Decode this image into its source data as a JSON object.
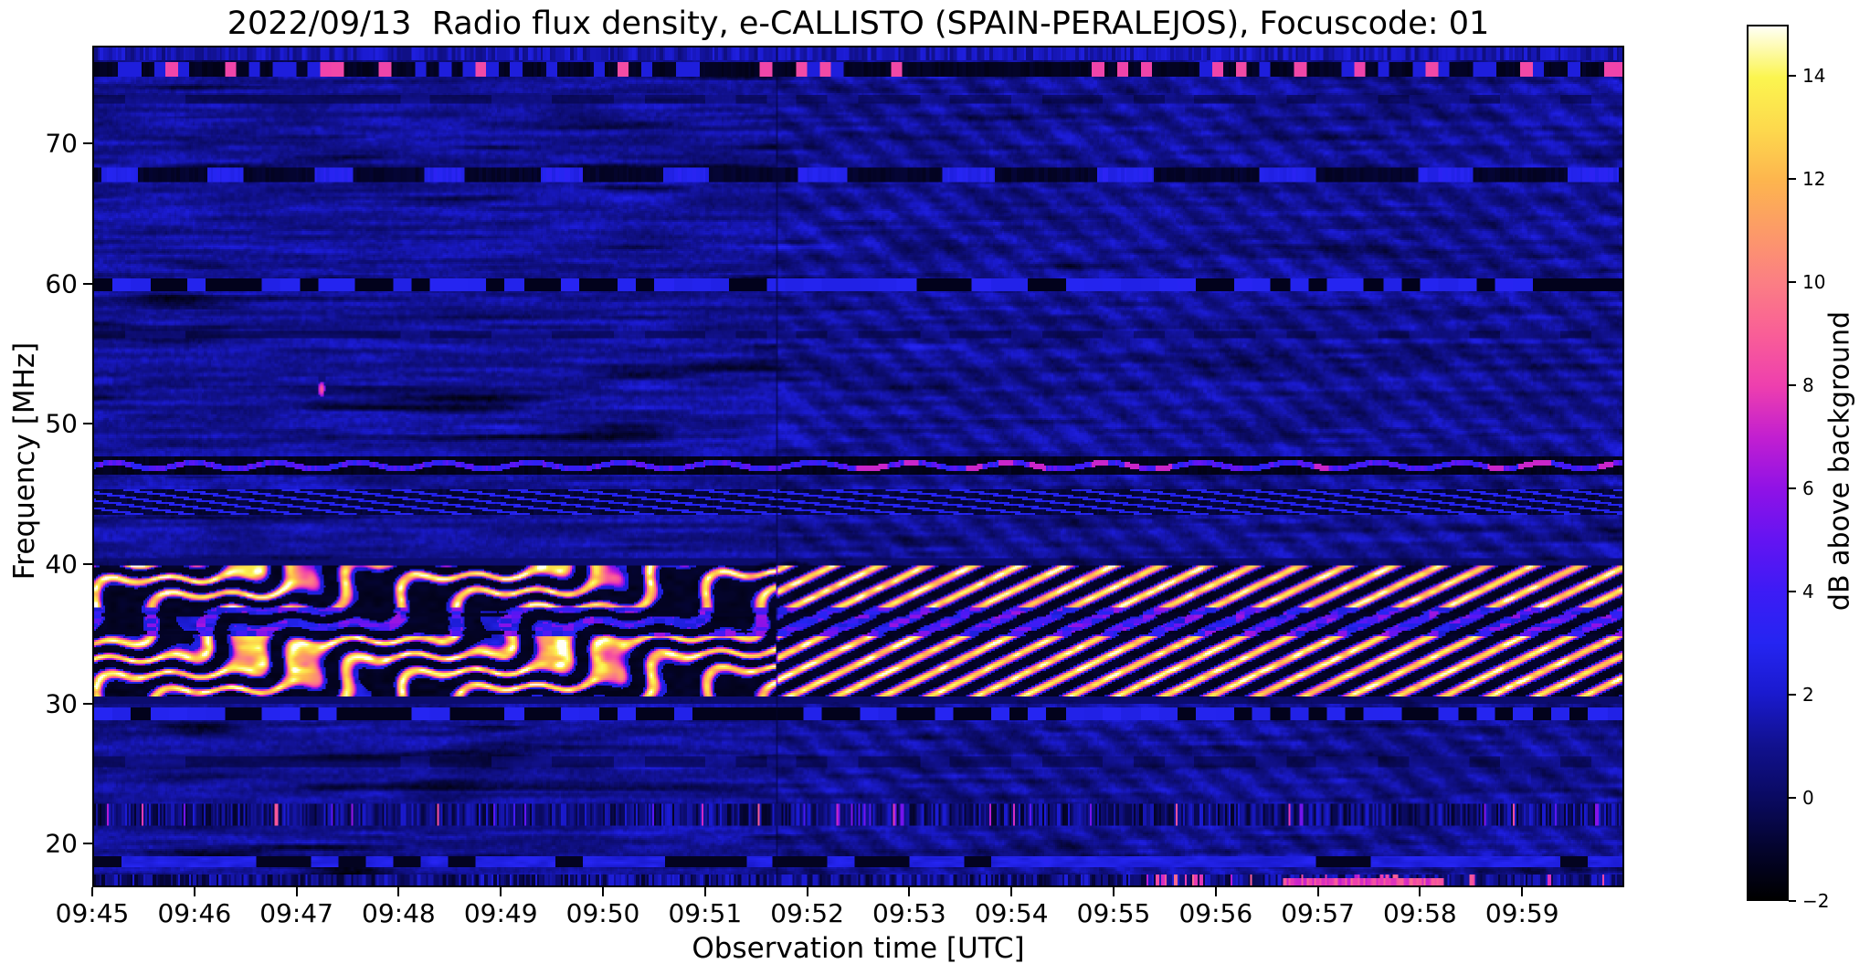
{
  "chart_data": {
    "type": "heatmap",
    "title": "2022/09/13  Radio flux density, e-CALLISTO (SPAIN-PERALEJOS), Focuscode: 01",
    "xlabel": "Observation time [UTC]",
    "ylabel": "Frequency [MHz]",
    "x_ticks": [
      "09:45",
      "09:46",
      "09:47",
      "09:48",
      "09:49",
      "09:50",
      "09:51",
      "09:52",
      "09:53",
      "09:54",
      "09:55",
      "09:56",
      "09:57",
      "09:58",
      "09:59"
    ],
    "x_start": "09:45",
    "x_end": "10:00",
    "x_duration_s": 900,
    "y_ticks": [
      70,
      60,
      50,
      40,
      30,
      20
    ],
    "ylim": [
      16.9,
      77.0
    ],
    "grid": false,
    "colorbar": {
      "label": "dB above background",
      "tick_labels": [
        "14",
        "12",
        "10",
        "8",
        "6",
        "4",
        "2",
        "0",
        "−2"
      ],
      "tick_values": [
        14,
        12,
        10,
        8,
        6,
        4,
        2,
        0,
        -2
      ],
      "range": [
        -2,
        15
      ],
      "colormap": [
        [
          -2,
          "#000000"
        ],
        [
          -1,
          "#04042e"
        ],
        [
          0,
          "#0a0a62"
        ],
        [
          1,
          "#11118f"
        ],
        [
          2,
          "#1a1ace"
        ],
        [
          3,
          "#2525f2"
        ],
        [
          4,
          "#3d1bf5"
        ],
        [
          5,
          "#6414f2"
        ],
        [
          6,
          "#9012e6"
        ],
        [
          7,
          "#c21fd0"
        ],
        [
          8,
          "#ee3fae"
        ],
        [
          9,
          "#f95e97"
        ],
        [
          10,
          "#fb7e84"
        ],
        [
          11,
          "#fc9a68"
        ],
        [
          12,
          "#fdb54e"
        ],
        [
          13,
          "#fdd94d"
        ],
        [
          14,
          "#fbf54f"
        ],
        [
          15,
          "#fffff5"
        ]
      ]
    },
    "features": {
      "background_db": 1.05,
      "transition_time_s": 402,
      "herringbone": {
        "period_s": 28,
        "pitch_mhz": 2.6,
        "depth_db": 0.55
      },
      "bright_band": {
        "f_low": 30.4,
        "f_high": 39.9,
        "max_db": 14.5,
        "left": {
          "stripe_period_s": 58,
          "pitch_mhz": 2.3,
          "wave_period_s": 185,
          "wave_amp": 0.55
        },
        "right": {
          "stripe_period_s": 27.5,
          "pitch_mhz": 1.58
        },
        "violet_subband": [
          34.7,
          36.8
        ]
      },
      "rfi_lines": [
        {
          "f": 75.4,
          "width": 0.55,
          "style": "dark_pink_dashes"
        },
        {
          "f": 73.3,
          "width": 0.3,
          "style": "faint_dark"
        },
        {
          "f": 67.9,
          "width": 0.5,
          "style": "dark_wavy_blue"
        },
        {
          "f": 60.0,
          "width": 0.45,
          "style": "dark_dashes"
        },
        {
          "f": 56.4,
          "width": 0.3,
          "style": "faint_dark"
        },
        {
          "f": 47.0,
          "width": 0.65,
          "style": "dark_bright_wave"
        },
        {
          "f": 44.4,
          "width": 0.9,
          "style": "dark_blue_waves"
        },
        {
          "f": 29.2,
          "width": 0.5,
          "style": "dark_dashes"
        },
        {
          "f": 25.8,
          "width": 0.4,
          "style": "faint_dark"
        },
        {
          "f": 22.0,
          "width": 0.8,
          "style": "speckle_columns"
        },
        {
          "f": 18.6,
          "width": 0.35,
          "style": "bright_blue_line"
        },
        {
          "f": 17.0,
          "width": 0.7,
          "style": "speckle_pink"
        }
      ],
      "point_burst": {
        "time_s": 134,
        "freq_mhz": 52.5,
        "db": 8.8
      },
      "bottom_streak": {
        "t0_s": 700,
        "t1_s": 795,
        "freq_mhz": 16.6,
        "db": 9.5
      },
      "vertical_line_s": 402
    }
  }
}
